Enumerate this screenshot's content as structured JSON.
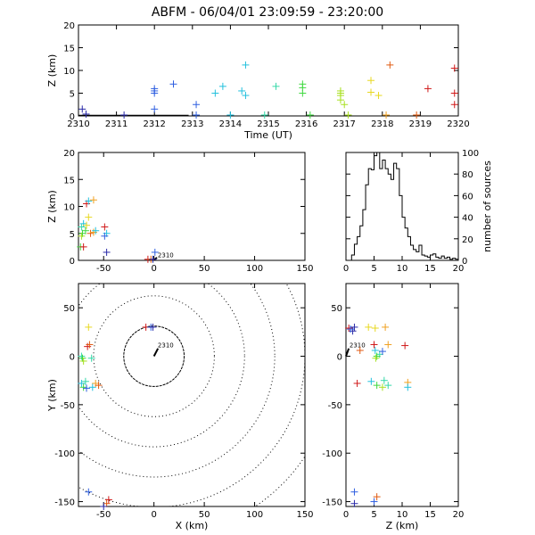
{
  "title": "ABFM - 06/04/01 23:09:59 - 23:20:00",
  "colors": {
    "axes": "#000000",
    "palette": [
      "#2a2aa8",
      "#2f5fe0",
      "#22c0dd",
      "#35d8a8",
      "#3fd83f",
      "#a8e020",
      "#e8d820",
      "#f0a020",
      "#e05a10",
      "#d01818"
    ]
  },
  "annotation_label": "2310",
  "chart_data": [
    {
      "id": "time_height",
      "type": "scatter",
      "title": "",
      "xlabel": "Time (UT)",
      "ylabel": "Z (km)",
      "xlim": [
        2310,
        2320
      ],
      "ylim": [
        0,
        20
      ],
      "xticks": [
        2310,
        2311,
        2312,
        2313,
        2314,
        2315,
        2316,
        2317,
        2318,
        2319,
        2320
      ],
      "xtick_labels": [
        "2310",
        "2311",
        "2312",
        "2313",
        "2314",
        "2315",
        "2316",
        "2317",
        "2318",
        "2319",
        "2320"
      ],
      "yticks": [
        0,
        5,
        10,
        15,
        20
      ],
      "ground_track": [
        [
          2310,
          0.1
        ],
        [
          2312.9,
          0.1
        ]
      ],
      "points": [
        {
          "x": 2310.1,
          "y": 1.5,
          "c": 0
        },
        {
          "x": 2310.2,
          "y": 0.4,
          "c": 0
        },
        {
          "x": 2311.2,
          "y": 0.2,
          "c": 0
        },
        {
          "x": 2312.0,
          "y": 6.0,
          "c": 1
        },
        {
          "x": 2312.0,
          "y": 5.5,
          "c": 1
        },
        {
          "x": 2312.0,
          "y": 5.0,
          "c": 1
        },
        {
          "x": 2312.0,
          "y": 1.5,
          "c": 1
        },
        {
          "x": 2312.5,
          "y": 7.0,
          "c": 1
        },
        {
          "x": 2313.1,
          "y": 2.5,
          "c": 1
        },
        {
          "x": 2313.1,
          "y": 0.2,
          "c": 1
        },
        {
          "x": 2313.6,
          "y": 5.0,
          "c": 2
        },
        {
          "x": 2313.8,
          "y": 6.5,
          "c": 2
        },
        {
          "x": 2314.0,
          "y": 0.2,
          "c": 2
        },
        {
          "x": 2314.4,
          "y": 11.2,
          "c": 2
        },
        {
          "x": 2314.3,
          "y": 5.5,
          "c": 2
        },
        {
          "x": 2314.4,
          "y": 4.5,
          "c": 2
        },
        {
          "x": 2314.9,
          "y": 0.2,
          "c": 3
        },
        {
          "x": 2315.2,
          "y": 6.5,
          "c": 3
        },
        {
          "x": 2315.9,
          "y": 7.0,
          "c": 4
        },
        {
          "x": 2315.9,
          "y": 6.2,
          "c": 4
        },
        {
          "x": 2315.9,
          "y": 5.0,
          "c": 4
        },
        {
          "x": 2316.1,
          "y": 0.2,
          "c": 4
        },
        {
          "x": 2316.9,
          "y": 5.5,
          "c": 5
        },
        {
          "x": 2316.9,
          "y": 5.0,
          "c": 5
        },
        {
          "x": 2316.9,
          "y": 4.5,
          "c": 5
        },
        {
          "x": 2316.9,
          "y": 3.5,
          "c": 5
        },
        {
          "x": 2317.0,
          "y": 2.5,
          "c": 5
        },
        {
          "x": 2317.1,
          "y": 0.2,
          "c": 5
        },
        {
          "x": 2317.7,
          "y": 7.8,
          "c": 6
        },
        {
          "x": 2317.7,
          "y": 5.2,
          "c": 6
        },
        {
          "x": 2317.9,
          "y": 4.5,
          "c": 6
        },
        {
          "x": 2318.1,
          "y": 0.2,
          "c": 7
        },
        {
          "x": 2318.2,
          "y": 11.2,
          "c": 8
        },
        {
          "x": 2318.9,
          "y": 0.2,
          "c": 8
        },
        {
          "x": 2319.2,
          "y": 6.0,
          "c": 9
        },
        {
          "x": 2319.9,
          "y": 10.5,
          "c": 9
        },
        {
          "x": 2319.9,
          "y": 5.0,
          "c": 9
        },
        {
          "x": 2319.9,
          "y": 2.5,
          "c": 9
        }
      ]
    },
    {
      "id": "x_height",
      "type": "scatter",
      "title": "",
      "xlabel": "",
      "ylabel": "Z (km)",
      "xlim": [
        -75,
        150
      ],
      "ylim": [
        0,
        20
      ],
      "xticks": [
        -50,
        0,
        50,
        100,
        150
      ],
      "yticks": [
        0,
        5,
        10,
        15,
        20
      ],
      "annotation": {
        "x": 2,
        "y": 0.6,
        "track": [
          [
            0,
            0.1
          ],
          [
            3,
            0.5
          ]
        ]
      },
      "points": [
        {
          "x": -72,
          "y": 6.2,
          "c": 3
        },
        {
          "x": -71,
          "y": 5.0,
          "c": 4
        },
        {
          "x": -72,
          "y": 4.5,
          "c": 5
        },
        {
          "x": -73,
          "y": 2.5,
          "c": 4
        },
        {
          "x": -70,
          "y": 6.8,
          "c": 2
        },
        {
          "x": -68,
          "y": 5.5,
          "c": 4
        },
        {
          "x": -70,
          "y": 2.5,
          "c": 9
        },
        {
          "x": -67,
          "y": 10.5,
          "c": 9
        },
        {
          "x": -65,
          "y": 11.0,
          "c": 2
        },
        {
          "x": -60,
          "y": 11.2,
          "c": 7
        },
        {
          "x": -65,
          "y": 8.0,
          "c": 6
        },
        {
          "x": -67,
          "y": 6.5,
          "c": 6
        },
        {
          "x": -63,
          "y": 5.0,
          "c": 8
        },
        {
          "x": -60,
          "y": 5.2,
          "c": 7
        },
        {
          "x": -58,
          "y": 5.5,
          "c": 2
        },
        {
          "x": -49,
          "y": 6.2,
          "c": 9
        },
        {
          "x": -47,
          "y": 5.0,
          "c": 2
        },
        {
          "x": -49,
          "y": 4.5,
          "c": 1
        },
        {
          "x": -47,
          "y": 1.5,
          "c": 0
        },
        {
          "x": -6,
          "y": 0.2,
          "c": 9
        },
        {
          "x": -3,
          "y": 0.2,
          "c": 8
        },
        {
          "x": -1,
          "y": 0.2,
          "c": 0
        },
        {
          "x": 1,
          "y": 1.5,
          "c": 1
        }
      ]
    },
    {
      "id": "height_histogram",
      "type": "line",
      "title": "",
      "xlabel": "",
      "ylabel": "number of sources",
      "xlim": [
        0,
        20
      ],
      "ylim": [
        0,
        100
      ],
      "xticks": [
        0,
        5,
        10,
        15,
        20
      ],
      "yticks": [
        0,
        20,
        40,
        60,
        80,
        100
      ],
      "bin_width": 0.5,
      "bins_start": 0,
      "counts": [
        0,
        0,
        5,
        15,
        22,
        32,
        47,
        70,
        85,
        84,
        97,
        100,
        85,
        93,
        85,
        80,
        75,
        90,
        85,
        60,
        40,
        30,
        22,
        14,
        10,
        8,
        14,
        5,
        4,
        3,
        5,
        6,
        3,
        2,
        4,
        2,
        3,
        1,
        2,
        1
      ]
    },
    {
      "id": "plan_view",
      "type": "scatter",
      "title": "",
      "xlabel": "X (km)",
      "ylabel": "Y (km)",
      "xlim": [
        -75,
        150
      ],
      "ylim": [
        -155,
        75
      ],
      "xticks": [
        -50,
        0,
        50,
        100,
        150
      ],
      "yticks": [
        -150,
        -100,
        -50,
        0,
        50
      ],
      "rings_km": [
        30,
        60,
        90,
        120,
        150,
        180
      ],
      "annotation": {
        "x": 2,
        "y": 9,
        "track": [
          [
            0,
            0
          ],
          [
            4,
            8
          ]
        ]
      },
      "points": [
        {
          "x": -72,
          "y": 0,
          "c": 3
        },
        {
          "x": -71,
          "y": -2,
          "c": 4
        },
        {
          "x": -70,
          "y": -5,
          "c": 5
        },
        {
          "x": -72,
          "y": -28,
          "c": 2
        },
        {
          "x": -70,
          "y": -32,
          "c": 4
        },
        {
          "x": -68,
          "y": -26,
          "c": 3
        },
        {
          "x": -67,
          "y": -33,
          "c": 1
        },
        {
          "x": -66,
          "y": 10,
          "c": 9
        },
        {
          "x": -64,
          "y": 12,
          "c": 8
        },
        {
          "x": -65,
          "y": 30,
          "c": 6
        },
        {
          "x": -62,
          "y": -2,
          "c": 3
        },
        {
          "x": -61,
          "y": -32,
          "c": 2
        },
        {
          "x": -58,
          "y": -28,
          "c": 7
        },
        {
          "x": -55,
          "y": -30,
          "c": 8
        },
        {
          "x": -8,
          "y": 30,
          "c": 9
        },
        {
          "x": -3,
          "y": 30,
          "c": 1
        },
        {
          "x": -1,
          "y": 30,
          "c": 0
        },
        {
          "x": -65,
          "y": -140,
          "c": 1
        },
        {
          "x": -45,
          "y": -148,
          "c": 9
        },
        {
          "x": -47,
          "y": -152,
          "c": 8
        },
        {
          "x": -50,
          "y": -155,
          "c": 0
        }
      ]
    },
    {
      "id": "height_y",
      "type": "scatter",
      "title": "",
      "xlabel": "Z (km)",
      "ylabel": "",
      "xlim": [
        0,
        20
      ],
      "ylim": [
        -155,
        75
      ],
      "xticks": [
        0,
        5,
        10,
        15,
        20
      ],
      "yticks": [
        -150,
        -100,
        -50,
        0,
        50
      ],
      "annotation": {
        "x": 0.3,
        "y": 9,
        "track": [
          [
            0,
            0
          ],
          [
            0.5,
            8
          ]
        ]
      },
      "points": [
        {
          "x": 0.5,
          "y": 29,
          "c": 9
        },
        {
          "x": 1.5,
          "y": 30,
          "c": 0
        },
        {
          "x": 1.2,
          "y": 26,
          "c": 0
        },
        {
          "x": 0.8,
          "y": 28,
          "c": 1
        },
        {
          "x": 2.5,
          "y": 6,
          "c": 8
        },
        {
          "x": 4.0,
          "y": 30,
          "c": 6
        },
        {
          "x": 5.2,
          "y": 29,
          "c": 6
        },
        {
          "x": 7.0,
          "y": 30,
          "c": 7
        },
        {
          "x": 5.0,
          "y": 12,
          "c": 9
        },
        {
          "x": 5.2,
          "y": 6,
          "c": 2
        },
        {
          "x": 6.0,
          "y": 2,
          "c": 3
        },
        {
          "x": 5.5,
          "y": 0,
          "c": 4
        },
        {
          "x": 5.3,
          "y": -2,
          "c": 5
        },
        {
          "x": 6.5,
          "y": 5,
          "c": 1
        },
        {
          "x": 7.5,
          "y": 12,
          "c": 7
        },
        {
          "x": 10.5,
          "y": 11,
          "c": 9
        },
        {
          "x": 2.0,
          "y": -28,
          "c": 9
        },
        {
          "x": 4.5,
          "y": -26,
          "c": 2
        },
        {
          "x": 5.5,
          "y": -30,
          "c": 4
        },
        {
          "x": 6.5,
          "y": -32,
          "c": 5
        },
        {
          "x": 6.8,
          "y": -25,
          "c": 3
        },
        {
          "x": 7.5,
          "y": -30,
          "c": 3
        },
        {
          "x": 11.0,
          "y": -27,
          "c": 7
        },
        {
          "x": 11.0,
          "y": -32,
          "c": 2
        },
        {
          "x": 1.5,
          "y": -140,
          "c": 1
        },
        {
          "x": 5.5,
          "y": -145,
          "c": 8
        },
        {
          "x": 5.0,
          "y": -150,
          "c": 1
        },
        {
          "x": 1.5,
          "y": -152,
          "c": 0
        }
      ]
    }
  ]
}
